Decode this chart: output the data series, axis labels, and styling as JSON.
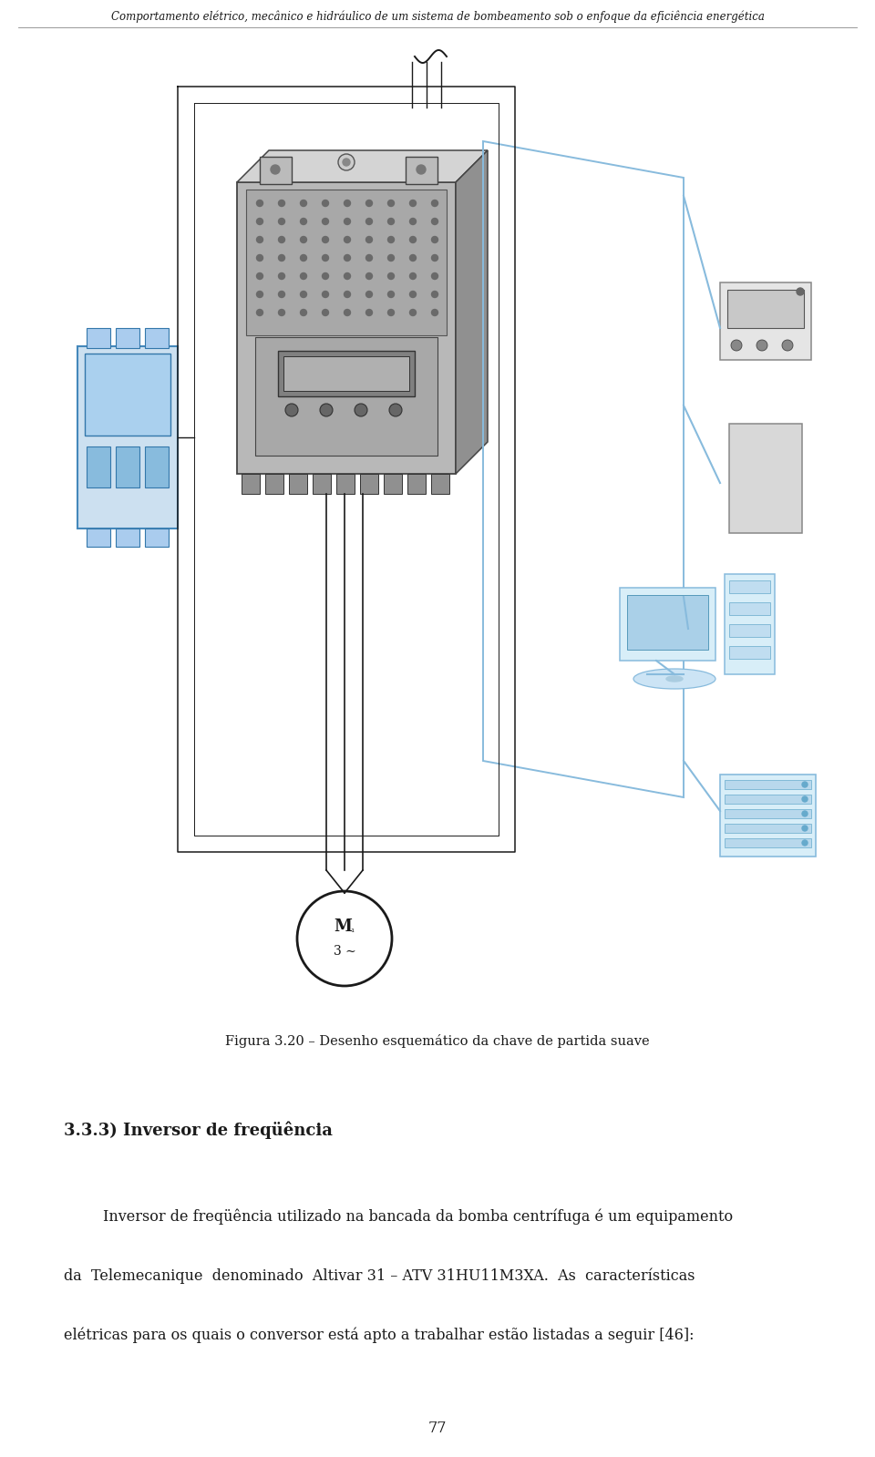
{
  "header_text": "Comportamento elétrico, mecânico e hidráulico de um sistema de bombeamento sob o enfoque da eficiência energética",
  "figure_caption": "Figura 3.20 – Desenho esquemático da chave de partida suave",
  "section_heading": "3.3.3) Inversor de freqüência",
  "line1": "Inversor de freqüência utilizado na bancada da bomba centrífuga é um equipamento",
  "line2": "da  Telemecanique  denominado  Altivar 31 – ATV 31HU11M3XA.  As  características",
  "line3": "elétricas para os quais o conversor está apto a trabalhar estão listadas a seguir [46]:",
  "page_number": "77",
  "bg": "#ffffff",
  "black": "#1a1a1a",
  "blue": "#5599cc",
  "gray_light": "#c8c8c8",
  "gray_mid": "#999999",
  "gray_dark": "#555555"
}
